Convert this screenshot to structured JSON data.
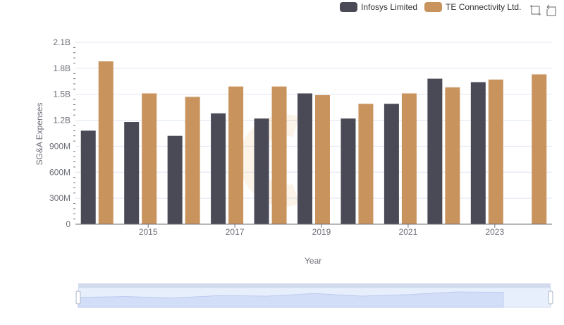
{
  "chart_data": {
    "type": "bar",
    "xlabel": "Year",
    "ylabel": "SG&A Expenses",
    "x": [
      2014,
      2015,
      2016,
      2017,
      2018,
      2019,
      2020,
      2021,
      2022,
      2023,
      2024
    ],
    "x_tick_labels": [
      "2015",
      "2017",
      "2019",
      "2021",
      "2023"
    ],
    "y_tick_labels": [
      "0",
      "300M",
      "600M",
      "900M",
      "1.2B",
      "1.5B",
      "1.8B",
      "2.1B"
    ],
    "ylim": [
      0,
      2100000000
    ],
    "grid": true,
    "legend_position": "top-right",
    "series": [
      {
        "name": "Infosys Limited",
        "color": "#4a4a57",
        "values": [
          1080000000,
          1180000000,
          1020000000,
          1280000000,
          1220000000,
          1510000000,
          1220000000,
          1390000000,
          1680000000,
          1640000000,
          null
        ]
      },
      {
        "name": "TE Connectivity Ltd.",
        "color": "#c9935e",
        "values": [
          1880000000,
          1510000000,
          1470000000,
          1590000000,
          1590000000,
          1490000000,
          1390000000,
          1510000000,
          1580000000,
          1670000000,
          1730000000
        ]
      }
    ]
  },
  "toolbox": {
    "icons": [
      "zoom-icon",
      "restore-icon"
    ]
  }
}
